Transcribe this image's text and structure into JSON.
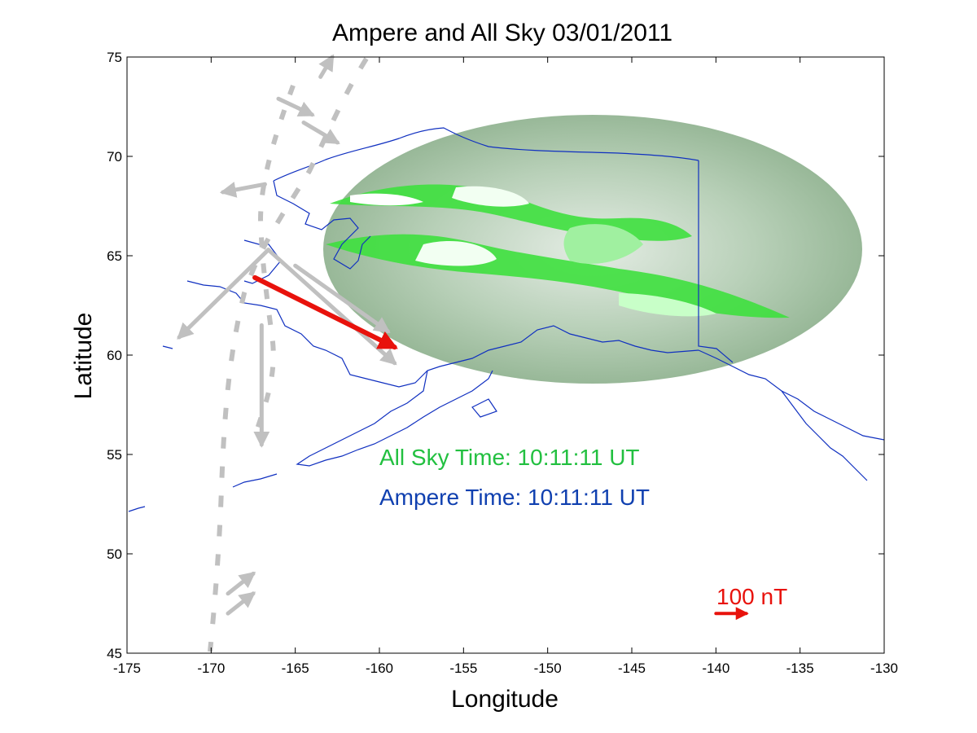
{
  "chart_data": {
    "type": "scatter",
    "title": "Ampere and All Sky 03/01/2011",
    "xlabel": "Longitude",
    "ylabel": "Latitude",
    "xlim": [
      -175,
      -130
    ],
    "ylim": [
      45,
      75
    ],
    "x_ticks": [
      "-175",
      "-170",
      "-165",
      "-160",
      "-155",
      "-150",
      "-145",
      "-140",
      "-135",
      "-130"
    ],
    "y_ticks": [
      "45",
      "50",
      "55",
      "60",
      "65",
      "70",
      "75"
    ],
    "grid": false,
    "annotations": {
      "all_sky_time": "All Sky Time: 10:11:11 UT",
      "ampere_time": "Ampere Time: 10:11:11 UT",
      "scale_label": "100 nT"
    },
    "all_sky_image": {
      "center_lon": -146.5,
      "center_lat": 64.6,
      "color": "#22e022"
    },
    "highlight_vector": {
      "lon": -167.4,
      "lat": 63.9,
      "dlon": 8.3,
      "dlat": -3.5,
      "color": "#e8120c"
    },
    "scale_vector": {
      "lon": -140.0,
      "lat": 47.0,
      "dlon": 1.8,
      "dlat": 0,
      "color": "#e8120c"
    },
    "ampere_vectors": {
      "color": "#c0c0c0",
      "points": [
        {
          "lon": -166.8,
          "lat": 68.6,
          "dlon": -2.5,
          "dlat": -0.4
        },
        {
          "lon": -166.6,
          "lat": 65.3,
          "dlon": -5.3,
          "dlat": -4.4
        },
        {
          "lon": -166.6,
          "lat": 65.3,
          "dlon": 7.5,
          "dlat": -5.7
        },
        {
          "lon": -165.0,
          "lat": 64.5,
          "dlon": 5.5,
          "dlat": -3.3
        },
        {
          "lon": -167.0,
          "lat": 61.5,
          "dlon": 0.0,
          "dlat": -6.0
        },
        {
          "lon": -166.0,
          "lat": 72.9,
          "dlon": 2.0,
          "dlat": -0.8
        },
        {
          "lon": -164.5,
          "lat": 71.7,
          "dlon": 2.0,
          "dlat": -1.0
        },
        {
          "lon": -163.5,
          "lat": 74.0,
          "dlon": 0.7,
          "dlat": 1.0
        },
        {
          "lon": -169.0,
          "lat": 48.0,
          "dlon": 1.5,
          "dlat": 1.0
        },
        {
          "lon": -169.0,
          "lat": 47.0,
          "dlon": 1.5,
          "dlat": 1.0
        }
      ]
    },
    "coastline": {
      "color": "#1030c0"
    },
    "alaska_canada_border": {
      "color": "#1030c0",
      "lon": -141.0,
      "lat_start": 59.8,
      "lat_end": 69.6
    }
  }
}
